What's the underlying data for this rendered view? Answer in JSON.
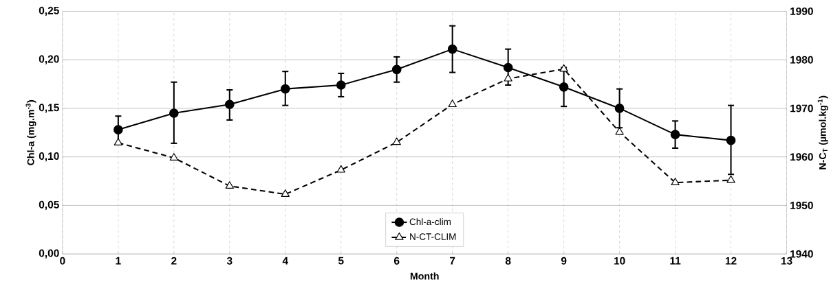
{
  "chart_data": {
    "type": "line",
    "xlabel": "Month",
    "ylabel": "Chl-a (mg.m$^{-3}$)",
    "y2label": "N-C$_{T}$ (µmol.kg$^{-1}$)",
    "x": [
      1,
      2,
      3,
      4,
      5,
      6,
      7,
      8,
      9,
      10,
      11,
      12
    ],
    "series": [
      {
        "name": "Chl-a-clim",
        "color": "#000000",
        "marker": "circle",
        "line_style": "solid",
        "values": [
          0.128,
          0.145,
          0.154,
          0.17,
          0.174,
          0.19,
          0.211,
          0.192,
          0.172,
          0.15,
          0.123,
          0.117
        ],
        "errors": [
          [
            0.114,
            0.142
          ],
          [
            0.114,
            0.177
          ],
          [
            0.138,
            0.169
          ],
          [
            0.153,
            0.188
          ],
          [
            0.162,
            0.186
          ],
          [
            0.177,
            0.203
          ],
          [
            0.187,
            0.235
          ],
          [
            0.174,
            0.211
          ],
          [
            0.152,
            0.192
          ],
          [
            0.13,
            0.17
          ],
          [
            0.109,
            0.137
          ],
          [
            0.082,
            0.153
          ]
        ]
      },
      {
        "name": "N-CT-CLIM",
        "color": "#000000",
        "marker": "triangle",
        "line_style": "dashed",
        "axis": "y2",
        "values": [
          1962.9,
          1959.8,
          1954.0,
          1952.3,
          1957.3,
          1963.0,
          1970.8,
          1976.1,
          1978.1,
          1965.1,
          1954.7,
          1955.2
        ]
      }
    ],
    "xlim": [
      0,
      13
    ],
    "xticks": [
      0,
      1,
      2,
      3,
      4,
      5,
      6,
      7,
      8,
      9,
      10,
      11,
      12,
      13
    ],
    "ylim": [
      0,
      0.25
    ],
    "yticks": [
      {
        "value": 0,
        "label": "0,00"
      },
      {
        "value": 0.05,
        "label": "0,05"
      },
      {
        "value": 0.1,
        "label": "0,10"
      },
      {
        "value": 0.15,
        "label": "0,15"
      },
      {
        "value": 0.2,
        "label": "0,20"
      },
      {
        "value": 0.25,
        "label": "0,25"
      }
    ],
    "y2lim": [
      1940,
      1990
    ],
    "y2ticks": [
      1940,
      1950,
      1960,
      1970,
      1980,
      1990
    ],
    "grid": true,
    "legend": "bottom"
  }
}
